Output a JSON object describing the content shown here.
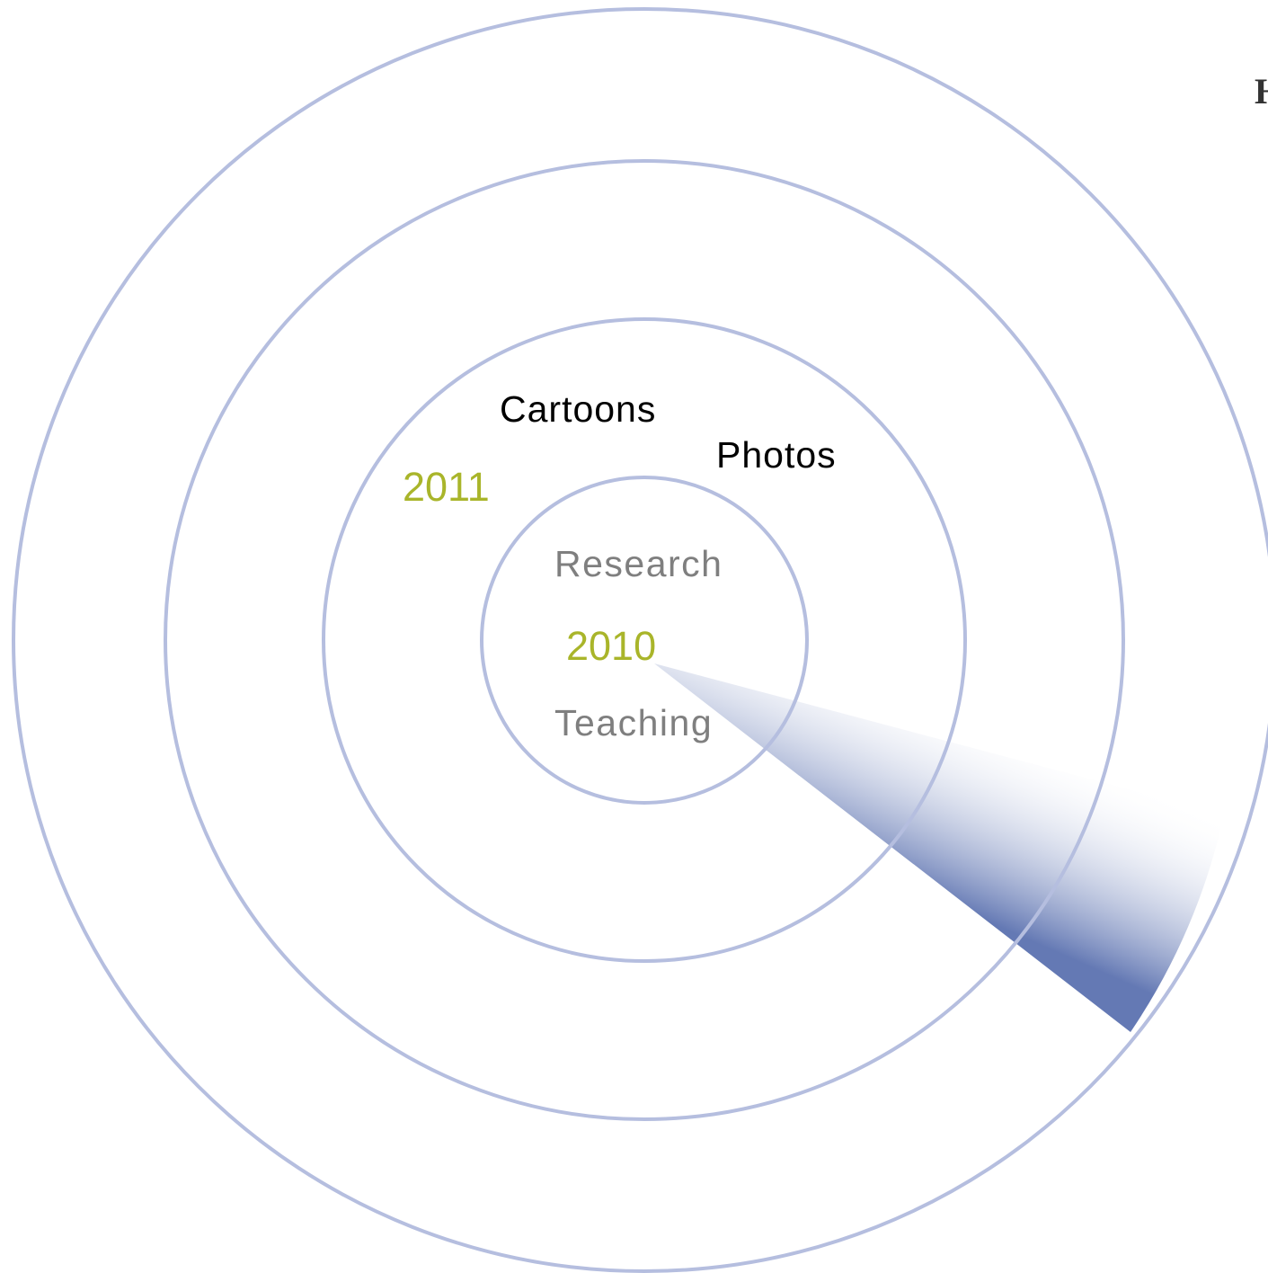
{
  "colors": {
    "ring": "#b5bedf",
    "sweep_dark": "#6479b4",
    "sweep_light": "#ffffff",
    "year": "#a9b52a",
    "topic_inner": "#7f7f7f",
    "topic_outer": "#000000",
    "cut_letter": "#333333"
  },
  "labels": {
    "year_2010": "2010",
    "year_2011": "2011",
    "research": "Research",
    "teaching": "Teaching",
    "cartoons": "Cartoons",
    "photos": "Photos",
    "cut_letter": "H"
  }
}
